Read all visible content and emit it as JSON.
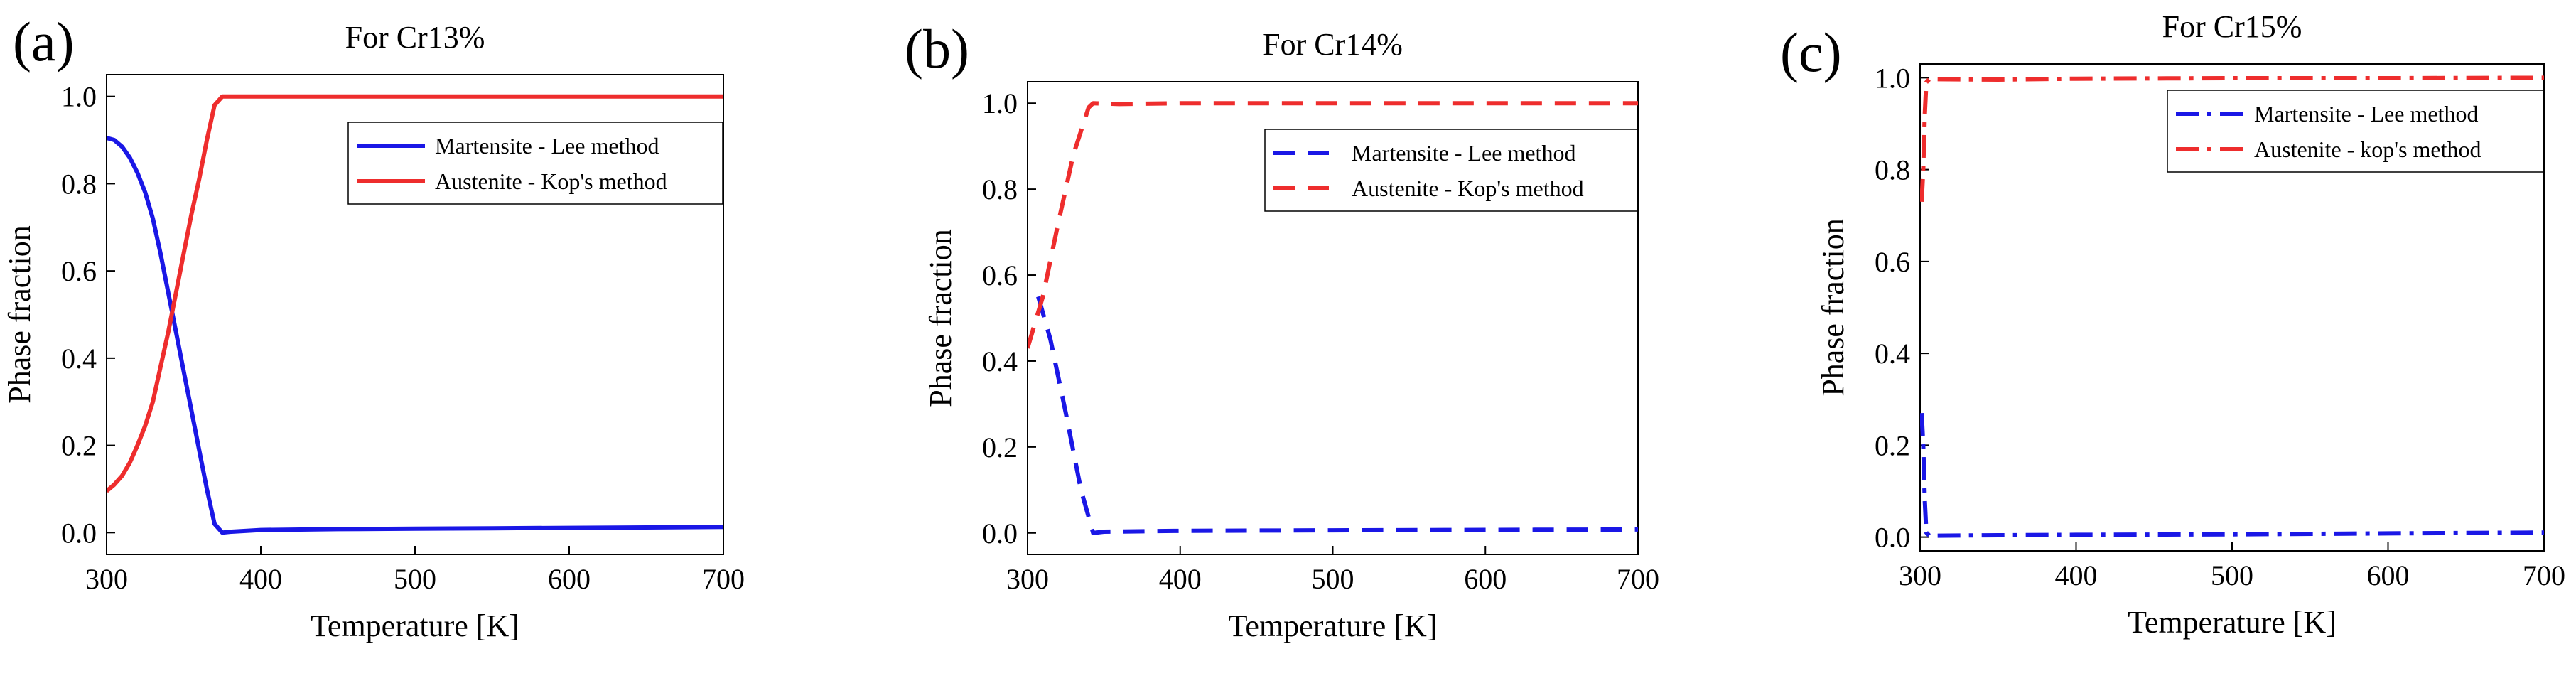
{
  "colors": {
    "martensite": "#1a17e6",
    "austenite": "#ee2d2d",
    "axis": "#000000"
  },
  "chart_data": [
    {
      "type": "line",
      "panel_label": "(a)",
      "title": "For Cr13%",
      "xlabel": "Temperature [K]",
      "ylabel": "Phase fraction",
      "xlim": [
        300,
        700
      ],
      "ylim": [
        -0.05,
        1.05
      ],
      "xticks": [
        300,
        400,
        500,
        600,
        700
      ],
      "yticks": [
        0.0,
        0.2,
        0.4,
        0.6,
        0.8,
        1.0
      ],
      "xtick_labels": [
        "300",
        "400",
        "500",
        "600",
        "700"
      ],
      "ytick_labels": [
        "0.0",
        "0.2",
        "0.4",
        "0.6",
        "0.8",
        "1.0"
      ],
      "legend_position": "top-right",
      "series": [
        {
          "name": "Martensite - Lee method",
          "color": "#1a17e6",
          "line_style": "solid",
          "x": [
            300,
            305,
            310,
            315,
            320,
            325,
            330,
            335,
            340,
            345,
            350,
            355,
            360,
            365,
            370,
            375,
            380,
            400,
            450,
            500,
            550,
            600,
            650,
            700
          ],
          "y": [
            0.905,
            0.9,
            0.885,
            0.86,
            0.825,
            0.78,
            0.72,
            0.64,
            0.55,
            0.46,
            0.37,
            0.28,
            0.19,
            0.1,
            0.02,
            0.0,
            0.002,
            0.006,
            0.008,
            0.009,
            0.01,
            0.011,
            0.012,
            0.013
          ]
        },
        {
          "name": "Austenite - Kop's method",
          "color": "#ee2d2d",
          "line_style": "solid",
          "x": [
            300,
            305,
            310,
            315,
            320,
            325,
            330,
            335,
            340,
            345,
            350,
            355,
            360,
            365,
            370,
            375,
            400,
            500,
            600,
            700
          ],
          "y": [
            0.095,
            0.11,
            0.13,
            0.16,
            0.2,
            0.245,
            0.3,
            0.38,
            0.46,
            0.55,
            0.64,
            0.73,
            0.81,
            0.9,
            0.98,
            1.0,
            1.0,
            1.0,
            1.0,
            1.0
          ]
        }
      ]
    },
    {
      "type": "line",
      "panel_label": "(b)",
      "title": "For Cr14%",
      "xlabel": "Temperature [K]",
      "ylabel": "Phase fraction",
      "xlim": [
        300,
        700
      ],
      "ylim": [
        -0.05,
        1.05
      ],
      "xticks": [
        300,
        400,
        500,
        600,
        700
      ],
      "yticks": [
        0.0,
        0.2,
        0.4,
        0.6,
        0.8,
        1.0
      ],
      "xtick_labels": [
        "300",
        "400",
        "500",
        "600",
        "700"
      ],
      "ytick_labels": [
        "0.0",
        "0.2",
        "0.4",
        "0.6",
        "0.8",
        "1.0"
      ],
      "legend_position": "top-right",
      "series": [
        {
          "name": "Martensite - Lee method",
          "color": "#1a17e6",
          "line_style": "dashed",
          "x": [
            307,
            315,
            325,
            335,
            343,
            350,
            400,
            500,
            600,
            700
          ],
          "y": [
            0.55,
            0.45,
            0.28,
            0.1,
            0.0,
            0.003,
            0.005,
            0.006,
            0.007,
            0.008
          ]
        },
        {
          "name": "Austenite - Kop's method",
          "color": "#ee2d2d",
          "line_style": "dashed",
          "x": [
            300,
            310,
            320,
            330,
            340,
            343,
            360,
            400,
            500,
            600,
            700
          ],
          "y": [
            0.43,
            0.55,
            0.72,
            0.88,
            0.99,
            1.0,
            0.998,
            1.0,
            1.0,
            1.0,
            1.0
          ]
        }
      ]
    },
    {
      "type": "line",
      "panel_label": "(c)",
      "title": "For Cr15%",
      "xlabel": "Temperature [K]",
      "ylabel": "Phase fraction",
      "xlim": [
        300,
        700
      ],
      "ylim": [
        -0.03,
        1.03
      ],
      "xticks": [
        300,
        400,
        500,
        600,
        700
      ],
      "yticks": [
        0.0,
        0.2,
        0.4,
        0.6,
        0.8,
        1.0
      ],
      "xtick_labels": [
        "300",
        "400",
        "500",
        "600",
        "700"
      ],
      "ytick_labels": [
        "0.0",
        "0.2",
        "0.4",
        "0.6",
        "0.8",
        "1.0"
      ],
      "legend_position": "top-right",
      "series": [
        {
          "name": "Martensite - Lee method",
          "color": "#1a17e6",
          "line_style": "dash-dot",
          "x": [
            301,
            302,
            303,
            304,
            306,
            350,
            400,
            500,
            600,
            700
          ],
          "y": [
            0.27,
            0.2,
            0.08,
            0.01,
            0.003,
            0.004,
            0.005,
            0.006,
            0.008,
            0.01
          ]
        },
        {
          "name": "Austenite - kop's method",
          "color": "#ee2d2d",
          "line_style": "dash-dot",
          "x": [
            301,
            302,
            303,
            304,
            306,
            350,
            400,
            500,
            600,
            700
          ],
          "y": [
            0.73,
            0.8,
            0.92,
            0.99,
            0.997,
            0.996,
            0.998,
            0.999,
            0.999,
            1.0
          ]
        }
      ]
    }
  ]
}
